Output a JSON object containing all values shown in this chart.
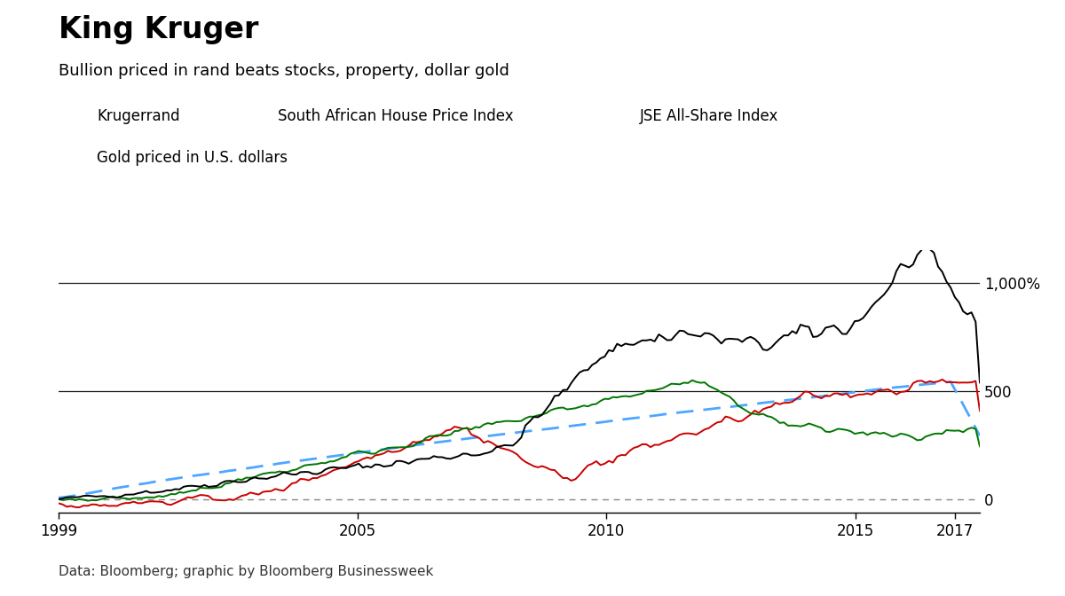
{
  "title": "King Kruger",
  "subtitle": "Bullion priced in rand beats stocks, property, dollar gold",
  "footer": "Data: Bloomberg; graphic by Bloomberg Businessweek",
  "legend_entries": [
    {
      "label": "Krugerrand",
      "color": "#000000",
      "linestyle": "solid"
    },
    {
      "label": "South African House Price Index",
      "color": "#4da6ff",
      "linestyle": "dashed"
    },
    {
      "label": "JSE All-Share Index",
      "color": "#cc0000",
      "linestyle": "solid"
    },
    {
      "label": "Gold priced in U.S. dollars",
      "color": "#007700",
      "linestyle": "solid"
    }
  ],
  "yticks": [
    0,
    500,
    1000
  ],
  "yticklabels": [
    "0",
    "500",
    "1,000%"
  ],
  "ylim": [
    -60,
    1150
  ],
  "xlim": [
    1999.0,
    2017.5
  ],
  "xticks": [
    1999,
    2005,
    2010,
    2015,
    2017
  ],
  "xticklabels": [
    "1999",
    "2005",
    "2010",
    "2015",
    "2017"
  ],
  "background_color": "#ffffff",
  "zero_line_color": "#888888",
  "hline_color": "#1a1a1a",
  "title_fontsize": 24,
  "subtitle_fontsize": 13,
  "tick_fontsize": 12,
  "footer_fontsize": 11
}
